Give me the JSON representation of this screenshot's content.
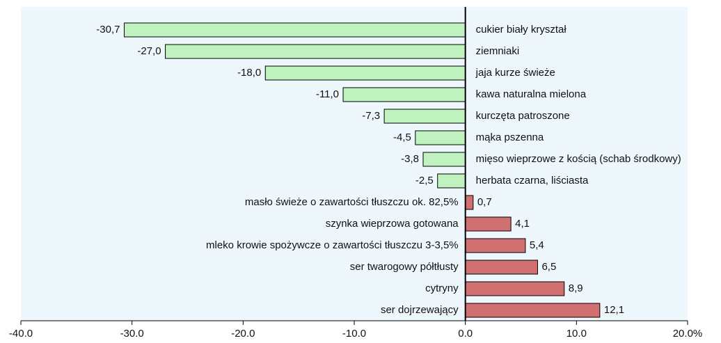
{
  "chart_data": {
    "type": "bar",
    "orientation": "horizontal",
    "categories": [
      "cukier biały kryształ",
      "ziemniaki",
      "jaja kurze świeże",
      "kawa naturalna mielona",
      "kurczęta patroszone",
      "mąka pszenna",
      "mięso wieprzowe z kością (schab środkowy)",
      "herbata czarna, liściasta",
      "masło świeże o zawartości tłuszczu ok. 82,5%",
      "szynka wieprzowa gotowana",
      "mleko krowie spożywcze o zawartości tłuszczu 3-3,5%",
      "ser twarogowy półtłusty",
      "cytryny",
      "ser dojrzewający"
    ],
    "values": [
      -30.7,
      -27.0,
      -18.0,
      -11.0,
      -7.3,
      -4.5,
      -3.8,
      -2.5,
      0.7,
      4.1,
      5.4,
      6.5,
      8.9,
      12.1
    ],
    "value_labels": [
      "-30,7",
      "-27,0",
      "-18,0",
      "-11,0",
      "-7,3",
      "-4,5",
      "-3,8",
      "-2,5",
      "0,7",
      "4,1",
      "5,4",
      "6,5",
      "8,9",
      "12,1"
    ],
    "colors": {
      "negative": "#bff2bf",
      "positive": "#d07070"
    },
    "xlim": [
      -40,
      20
    ],
    "xticks": [
      {
        "value": -40,
        "label": "-40.0"
      },
      {
        "value": -30,
        "label": "-30.0"
      },
      {
        "value": -20,
        "label": "-20.0"
      },
      {
        "value": -10,
        "label": "-10.0"
      },
      {
        "value": 0,
        "label": "0.0"
      },
      {
        "value": 10,
        "label": "10.0"
      },
      {
        "value": 20,
        "label": "20.0%"
      }
    ]
  }
}
